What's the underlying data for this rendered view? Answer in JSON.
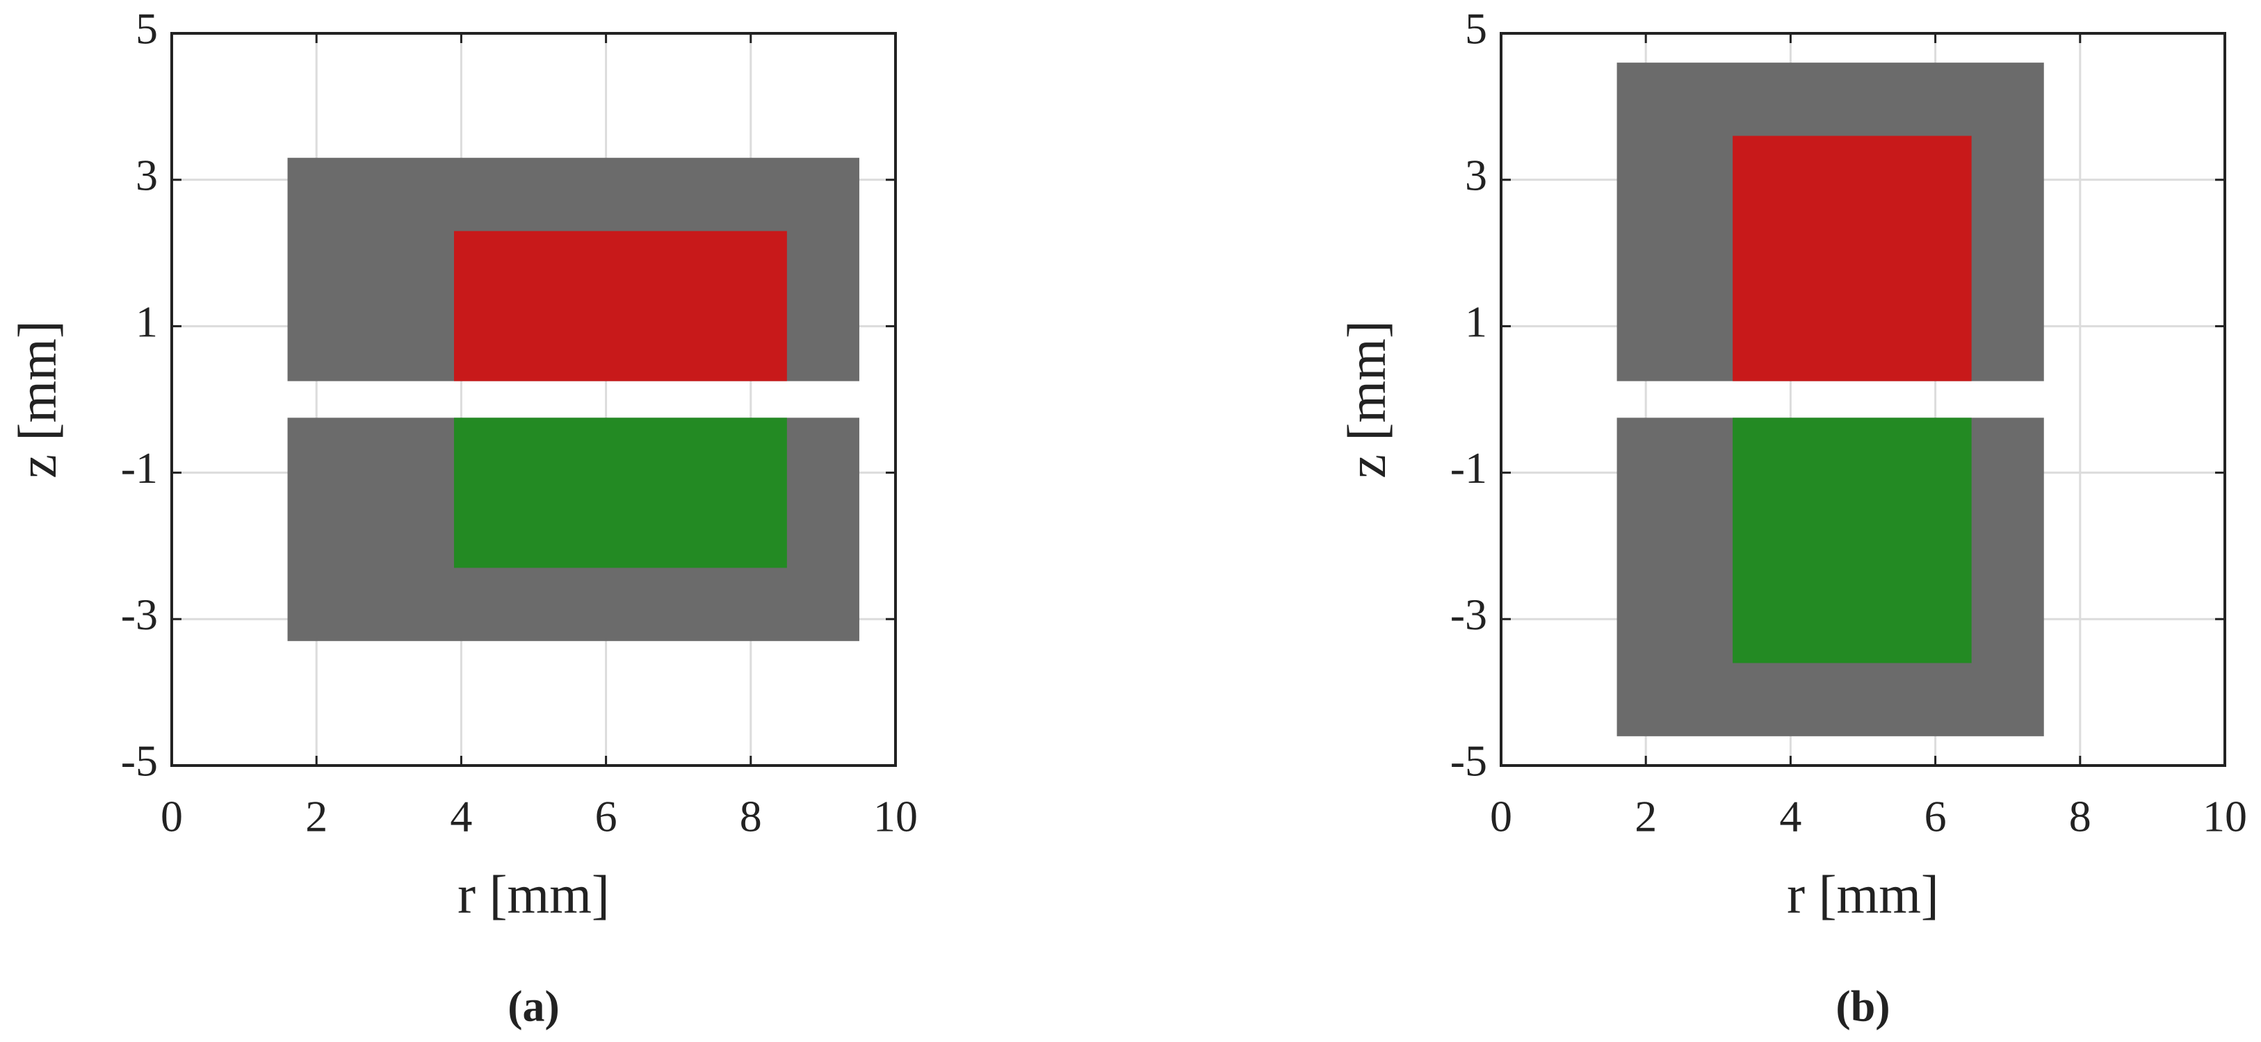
{
  "chart_data": [
    {
      "type": "rectangles",
      "caption": "(a)",
      "xlabel": "r [mm]",
      "ylabel": "z [mm]",
      "xlim": [
        0,
        10
      ],
      "xticks": [
        0,
        2,
        4,
        6,
        8,
        10
      ],
      "ylim": [
        -5,
        5
      ],
      "yticks": [
        -5,
        -3,
        -1,
        1,
        3,
        5
      ],
      "grid": true,
      "shapes": [
        {
          "x": [
            1.6,
            9.5
          ],
          "y": [
            0.25,
            3.3
          ],
          "color": "#6b6b6b"
        },
        {
          "x": [
            1.6,
            9.5
          ],
          "y": [
            -3.3,
            -0.25
          ],
          "color": "#6b6b6b"
        },
        {
          "x": [
            3.9,
            8.5
          ],
          "y": [
            0.25,
            2.3
          ],
          "color": "#c8191a"
        },
        {
          "x": [
            3.9,
            8.5
          ],
          "y": [
            -2.3,
            -0.25
          ],
          "color": "#238a23"
        }
      ]
    },
    {
      "type": "rectangles",
      "caption": "(b)",
      "xlabel": "r [mm]",
      "ylabel": "z [mm]",
      "xlim": [
        0,
        10
      ],
      "xticks": [
        0,
        2,
        4,
        6,
        8,
        10
      ],
      "ylim": [
        -5,
        5
      ],
      "yticks": [
        -5,
        -3,
        -1,
        1,
        3,
        5
      ],
      "grid": true,
      "shapes": [
        {
          "x": [
            1.6,
            7.5
          ],
          "y": [
            0.25,
            4.6
          ],
          "color": "#6b6b6b"
        },
        {
          "x": [
            1.6,
            7.5
          ],
          "y": [
            -4.6,
            -0.25
          ],
          "color": "#6b6b6b"
        },
        {
          "x": [
            3.2,
            6.5
          ],
          "y": [
            0.25,
            3.6
          ],
          "color": "#c8191a"
        },
        {
          "x": [
            3.2,
            6.5
          ],
          "y": [
            -3.6,
            -0.25
          ],
          "color": "#238a23"
        }
      ]
    }
  ]
}
